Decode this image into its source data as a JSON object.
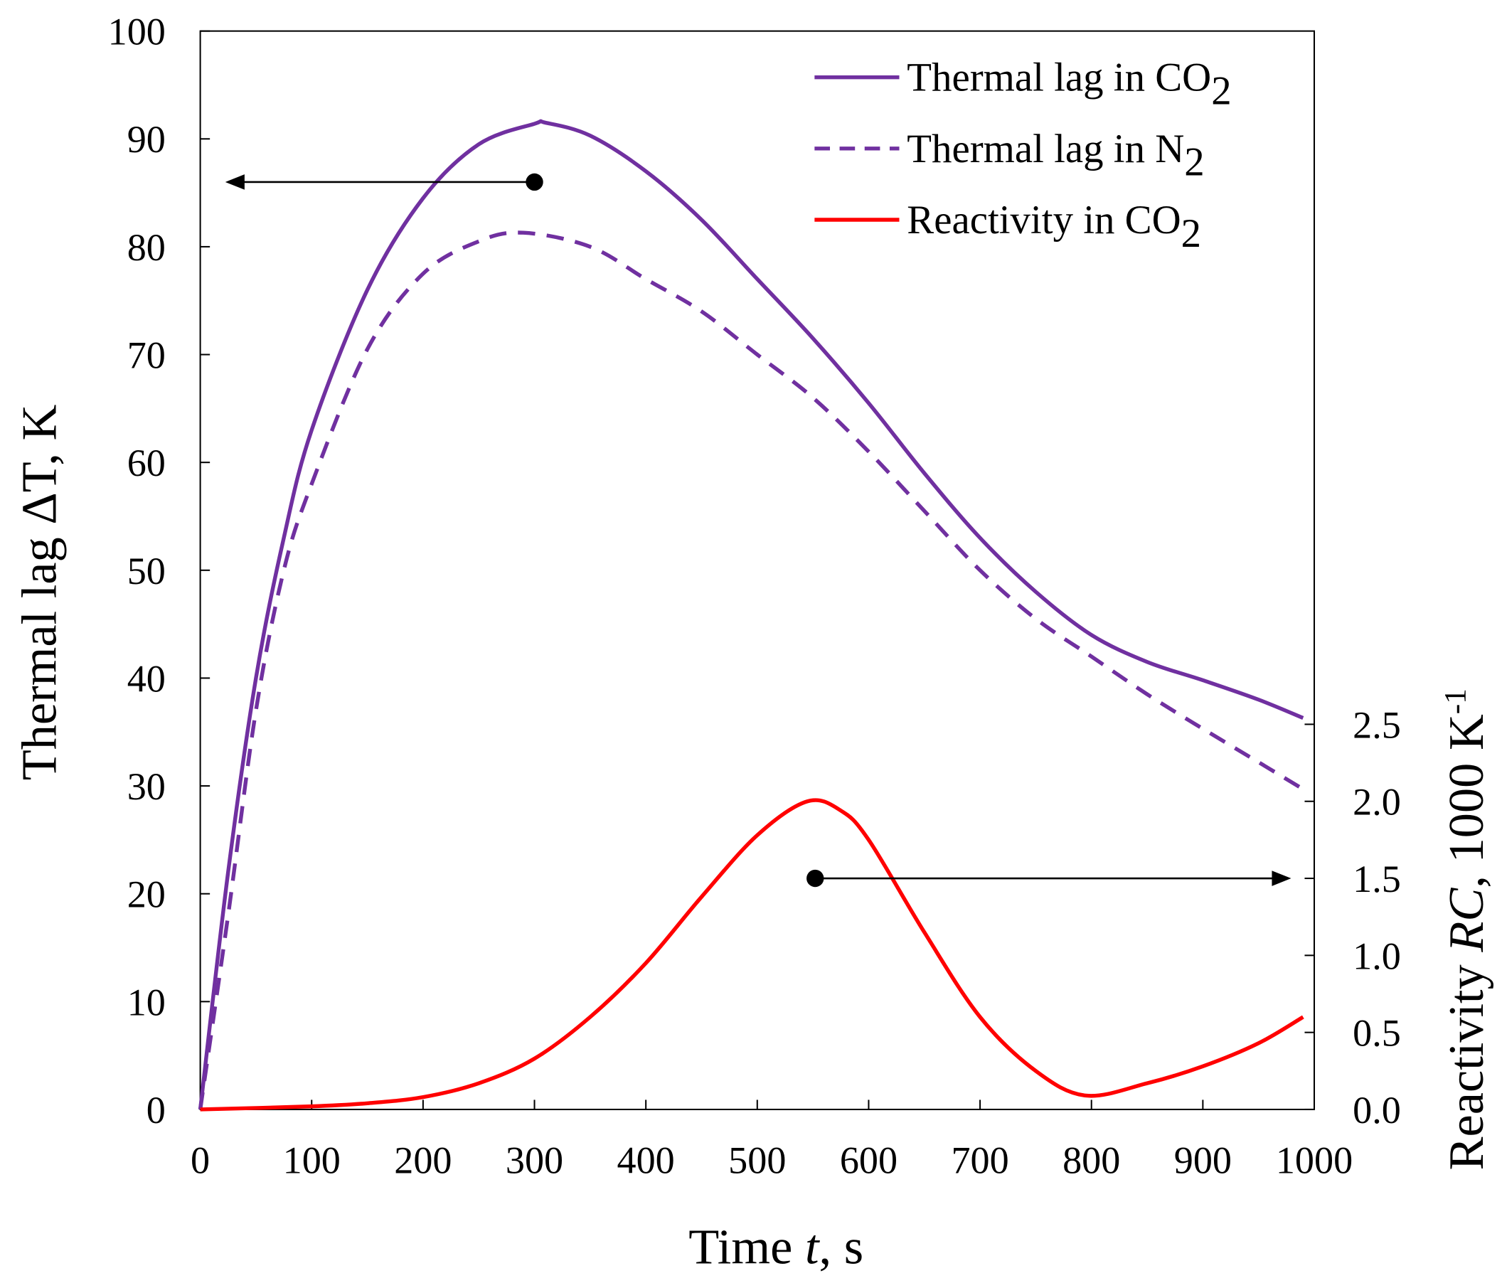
{
  "chart_data": {
    "type": "line",
    "xlabel": "Time t, s",
    "xlabel_parts": [
      "Time ",
      "t",
      ", s"
    ],
    "ylabel": "Thermal lag ΔT, K",
    "y2label_parts": [
      "Reactivity ",
      "RC",
      ", 1000 K",
      "-1"
    ],
    "xlim": [
      0,
      1000
    ],
    "ylim": [
      0,
      100
    ],
    "y2lim": [
      0,
      7
    ],
    "xticks": [
      "0",
      "100",
      "200",
      "300",
      "400",
      "500",
      "600",
      "700",
      "800",
      "900",
      "1000"
    ],
    "yticks": [
      "0",
      "10",
      "20",
      "30",
      "40",
      "50",
      "60",
      "70",
      "80",
      "90",
      "100"
    ],
    "y2ticks": [
      "0.0",
      "0.5",
      "1.0",
      "1.5",
      "2.0",
      "2.5"
    ],
    "legend_position": "top-right",
    "series": [
      {
        "name": "Thermal lag in CO2",
        "label": "Thermal lag in CO",
        "sub": "2",
        "axis": "left",
        "color": "#7030a0",
        "dash": false,
        "x": [
          0,
          25,
          50,
          75,
          100,
          150,
          200,
          250,
          300,
          310,
          350,
          400,
          450,
          500,
          550,
          600,
          650,
          700,
          750,
          800,
          850,
          900,
          950,
          990
        ],
        "y": [
          0,
          22,
          40,
          53,
          63,
          76,
          84.5,
          89.5,
          91.4,
          91.5,
          90.3,
          87,
          82.5,
          77,
          71.5,
          65.5,
          59,
          53,
          48,
          44,
          41.5,
          39.8,
          38,
          36.3
        ]
      },
      {
        "name": "Thermal lag in N2",
        "label": "Thermal lag in N",
        "sub": "2",
        "axis": "left",
        "color": "#7030a0",
        "dash": true,
        "x": [
          0,
          25,
          50,
          75,
          100,
          150,
          200,
          250,
          290,
          350,
          400,
          450,
          500,
          550,
          600,
          650,
          700,
          750,
          800,
          850,
          900,
          950,
          990
        ],
        "y": [
          0,
          18,
          37,
          50,
          58,
          70.5,
          77.5,
          80.5,
          81.3,
          80,
          77,
          74,
          70,
          66,
          61,
          55.5,
          50,
          45.5,
          42,
          38.5,
          35.3,
          32.2,
          29.7
        ]
      },
      {
        "name": "Reactivity in CO2",
        "label": "Reactivity in CO",
        "sub": "2",
        "axis": "right",
        "color": "#ff0000",
        "dash": false,
        "x": [
          0,
          100,
          150,
          200,
          250,
          300,
          350,
          400,
          450,
          500,
          545,
          575,
          600,
          650,
          700,
          750,
          795,
          850,
          900,
          950,
          990
        ],
        "y": [
          0,
          0.02,
          0.04,
          0.08,
          0.17,
          0.33,
          0.6,
          0.95,
          1.38,
          1.78,
          2.0,
          1.94,
          1.75,
          1.15,
          0.6,
          0.25,
          0.09,
          0.17,
          0.28,
          0.43,
          0.6
        ]
      }
    ],
    "annotations": [
      {
        "type": "arrow",
        "from": [
          300,
          86
        ],
        "direction": "left",
        "axis": "left"
      },
      {
        "type": "arrow",
        "from": [
          552,
          1.5
        ],
        "direction": "right",
        "axis": "right"
      }
    ]
  }
}
